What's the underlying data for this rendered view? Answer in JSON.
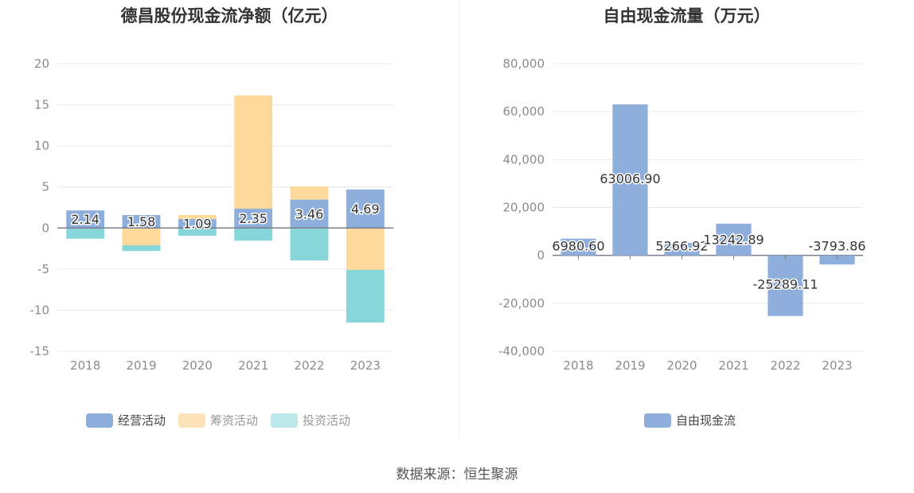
{
  "left_title": "德昌股份现金流净额（亿元）",
  "right_title": "自由现金流量（万元）",
  "source": "数据来源：恒生聚源",
  "colors": {
    "operating": "#8eaedb",
    "financing": "#fdd99b",
    "investing": "#86d6da",
    "free_cf": "#8eaedb",
    "grid": "#e8eaf0",
    "axis_text": "#8c8c8c",
    "label_text": "#333333"
  },
  "chart_data": [
    {
      "type": "bar",
      "stacked": true,
      "title": "德昌股份现金流净额（亿元）",
      "categories": [
        "2018",
        "2019",
        "2020",
        "2021",
        "2022",
        "2023"
      ],
      "ylim": [
        -15,
        20
      ],
      "yticks": [
        "20",
        "15",
        "10",
        "5",
        "0",
        "-5",
        "-10",
        "-15"
      ],
      "ytick_values": [
        20,
        15,
        10,
        5,
        0,
        -5,
        -10,
        -15
      ],
      "series": [
        {
          "name": "经营活动",
          "values": [
            2.14,
            1.58,
            1.09,
            2.35,
            3.46,
            4.69
          ],
          "labels": [
            "2.14",
            "1.58",
            "1.09",
            "2.35",
            "3.46",
            "4.69"
          ]
        },
        {
          "name": "筹资活动",
          "values": [
            0,
            -2.1,
            0.5,
            13.8,
            1.6,
            -5.1
          ]
        },
        {
          "name": "投资活动",
          "values": [
            -1.3,
            -0.7,
            -0.95,
            -1.55,
            -3.95,
            -6.4
          ]
        }
      ],
      "legend_position": "bottom",
      "grid": true
    },
    {
      "type": "bar",
      "title": "自由现金流量（万元）",
      "categories": [
        "2018",
        "2019",
        "2020",
        "2021",
        "2022",
        "2023"
      ],
      "ylim": [
        -40000,
        80000
      ],
      "yticks": [
        "80,000",
        "60,000",
        "40,000",
        "20,000",
        "0",
        "-20,000",
        "-40,000"
      ],
      "ytick_values": [
        80000,
        60000,
        40000,
        20000,
        0,
        -20000,
        -40000
      ],
      "series": [
        {
          "name": "自由现金流",
          "values": [
            6980.6,
            63006.9,
            5266.92,
            13242.89,
            -25289.11,
            -3793.86
          ],
          "labels": [
            "6980.60",
            "63006.90",
            "5266.92",
            "13242.89",
            "-25289.11",
            "-3793.86"
          ]
        }
      ],
      "legend_position": "bottom",
      "grid": true
    }
  ]
}
